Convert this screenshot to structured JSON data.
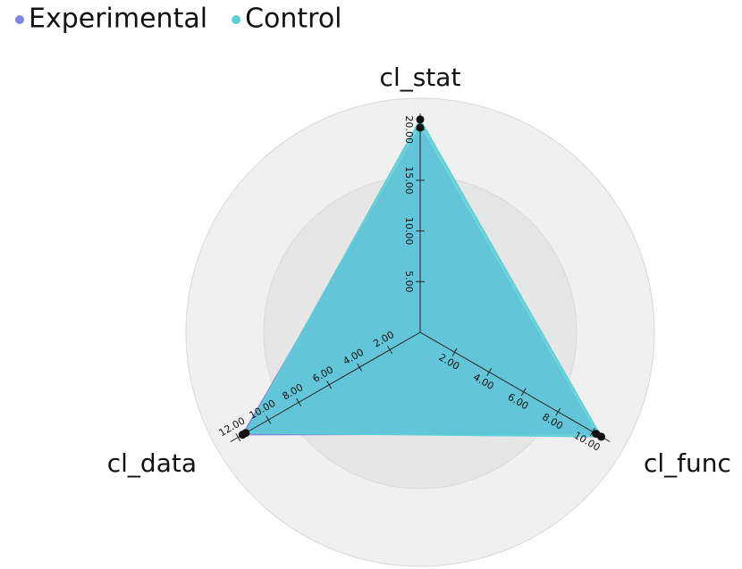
{
  "chart_data": {
    "type": "radar",
    "legend": "top-left",
    "axes": [
      {
        "name": "cl_stat",
        "lim": [
          0,
          21.6
        ],
        "ticks": [
          {
            "value": 5,
            "label": "5.00"
          },
          {
            "value": 10,
            "label": "10.00"
          },
          {
            "value": 15,
            "label": "15.00"
          },
          {
            "value": 20,
            "label": "20.00"
          }
        ]
      },
      {
        "name": "cl_func",
        "lim": [
          0,
          11
        ],
        "ticks": [
          {
            "value": 2,
            "label": "2.00"
          },
          {
            "value": 4,
            "label": "4.00"
          },
          {
            "value": 6,
            "label": "6.00"
          },
          {
            "value": 8,
            "label": "8.00"
          },
          {
            "value": 10,
            "label": "10.00"
          }
        ]
      },
      {
        "name": "cl_data",
        "lim": [
          0,
          12.5
        ],
        "ticks": [
          {
            "value": 2,
            "label": "2.00"
          },
          {
            "value": 4,
            "label": "4.00"
          },
          {
            "value": 6,
            "label": "6.00"
          },
          {
            "value": 8,
            "label": "8.00"
          },
          {
            "value": 10,
            "label": "10.00"
          },
          {
            "value": 12,
            "label": "12.00"
          }
        ]
      }
    ],
    "series": [
      {
        "name": "Experimental",
        "color": "#7b86e0",
        "values": [
          20.2,
          10.2,
          11.7
        ]
      },
      {
        "name": "Control",
        "color": "#5ccfd6",
        "values": [
          21.0,
          10.5,
          11.5
        ]
      }
    ]
  }
}
